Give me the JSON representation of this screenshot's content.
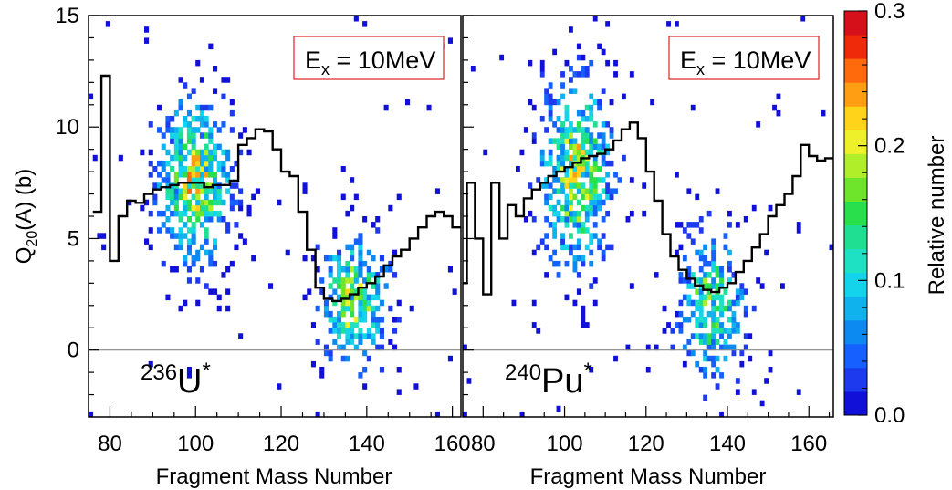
{
  "chart_data": [
    {
      "type": "heatmap",
      "nucleus": {
        "mass": "236",
        "symbol": "U",
        "mark": "*"
      },
      "annotation": {
        "base": "E",
        "sub": "x",
        "text": " = 10MeV"
      },
      "xlabel": "Fragment Mass Number",
      "ylabel": {
        "pre": "Q",
        "sub": "20",
        "post": "(A) (b)"
      },
      "xlim": [
        75,
        162
      ],
      "ylim": [
        -3,
        15
      ],
      "xticks": [
        80,
        100,
        120,
        140,
        160
      ],
      "yticks": [
        0,
        5,
        10,
        15
      ],
      "blobs": [
        {
          "x": 100,
          "y": 7.5,
          "sx": 5.5,
          "sy": 2.3,
          "w": 1.0
        },
        {
          "x": 137,
          "y": 2.2,
          "sx": 5.0,
          "sy": 1.8,
          "w": 0.95
        }
      ],
      "mean_curve": {
        "x": [
          77,
          79,
          81,
          83,
          85,
          87,
          89,
          91,
          93,
          95,
          97,
          99,
          101,
          103,
          105,
          107,
          109,
          111,
          113,
          115,
          117,
          119,
          121,
          123,
          125,
          127,
          129,
          131,
          133,
          135,
          137,
          139,
          141,
          143,
          145,
          147,
          149,
          151,
          153,
          155,
          157,
          159,
          161
        ],
        "y": [
          6.2,
          12.3,
          4.0,
          6.0,
          6.7,
          6.6,
          7.0,
          7.2,
          7.3,
          7.4,
          7.5,
          7.5,
          7.5,
          7.3,
          7.4,
          7.4,
          7.6,
          9.2,
          9.5,
          9.9,
          9.8,
          9.0,
          8.0,
          7.8,
          6.2,
          4.5,
          2.8,
          2.3,
          2.2,
          2.3,
          2.5,
          2.8,
          3.0,
          3.3,
          3.8,
          4.2,
          4.5,
          5.0,
          5.5,
          6.0,
          6.2,
          6.0,
          5.5
        ]
      }
    },
    {
      "type": "heatmap",
      "nucleus": {
        "mass": "240",
        "symbol": "Pu",
        "mark": "*"
      },
      "annotation": {
        "base": "E",
        "sub": "x",
        "text": " = 10MeV"
      },
      "xlabel": "Fragment Mass Number",
      "xlim": [
        75,
        166
      ],
      "ylim": [
        -3,
        15
      ],
      "xticks": [
        80,
        100,
        120,
        140,
        160
      ],
      "yticks": [
        0,
        5,
        10,
        15
      ],
      "blobs": [
        {
          "x": 103,
          "y": 8.0,
          "sx": 5.5,
          "sy": 2.6,
          "w": 1.0
        },
        {
          "x": 136,
          "y": 2.0,
          "sx": 5.0,
          "sy": 2.0,
          "w": 0.85
        }
      ],
      "mean_curve": {
        "x": [
          75,
          77,
          79,
          81,
          83,
          85,
          87,
          89,
          91,
          93,
          95,
          97,
          99,
          101,
          103,
          105,
          107,
          109,
          111,
          113,
          115,
          117,
          119,
          121,
          123,
          125,
          127,
          129,
          131,
          133,
          135,
          137,
          139,
          141,
          143,
          145,
          147,
          149,
          151,
          153,
          155,
          157,
          159,
          161,
          163,
          165
        ],
        "y": [
          3.0,
          7.5,
          5.0,
          2.5,
          7.5,
          5.0,
          6.5,
          6.0,
          6.8,
          7.2,
          7.5,
          7.8,
          8.0,
          8.2,
          8.4,
          8.6,
          8.7,
          8.8,
          9.0,
          9.4,
          9.9,
          10.2,
          9.5,
          8.0,
          6.7,
          5.2,
          4.2,
          3.6,
          3.2,
          2.9,
          2.7,
          2.6,
          2.8,
          3.0,
          3.5,
          4.0,
          4.6,
          5.2,
          6.0,
          6.5,
          7.0,
          7.8,
          9.2,
          8.7,
          8.5,
          8.6
        ]
      }
    }
  ],
  "colorbar": {
    "label": "Relative number",
    "min": 0,
    "max": 0.3,
    "ticks": [
      "0.0",
      "0.1",
      "0.2",
      "0.3"
    ],
    "colors": [
      "#1010d8",
      "#1e3aef",
      "#1560ff",
      "#0d8af2",
      "#10b2ee",
      "#14d4ec",
      "#1ee0c2",
      "#1fe092",
      "#29e04c",
      "#6ee42a",
      "#b0ee2a",
      "#eef02a",
      "#ffd31a",
      "#ff9e12",
      "#ff6a0c",
      "#ee2a0a",
      "#d6101a"
    ]
  }
}
